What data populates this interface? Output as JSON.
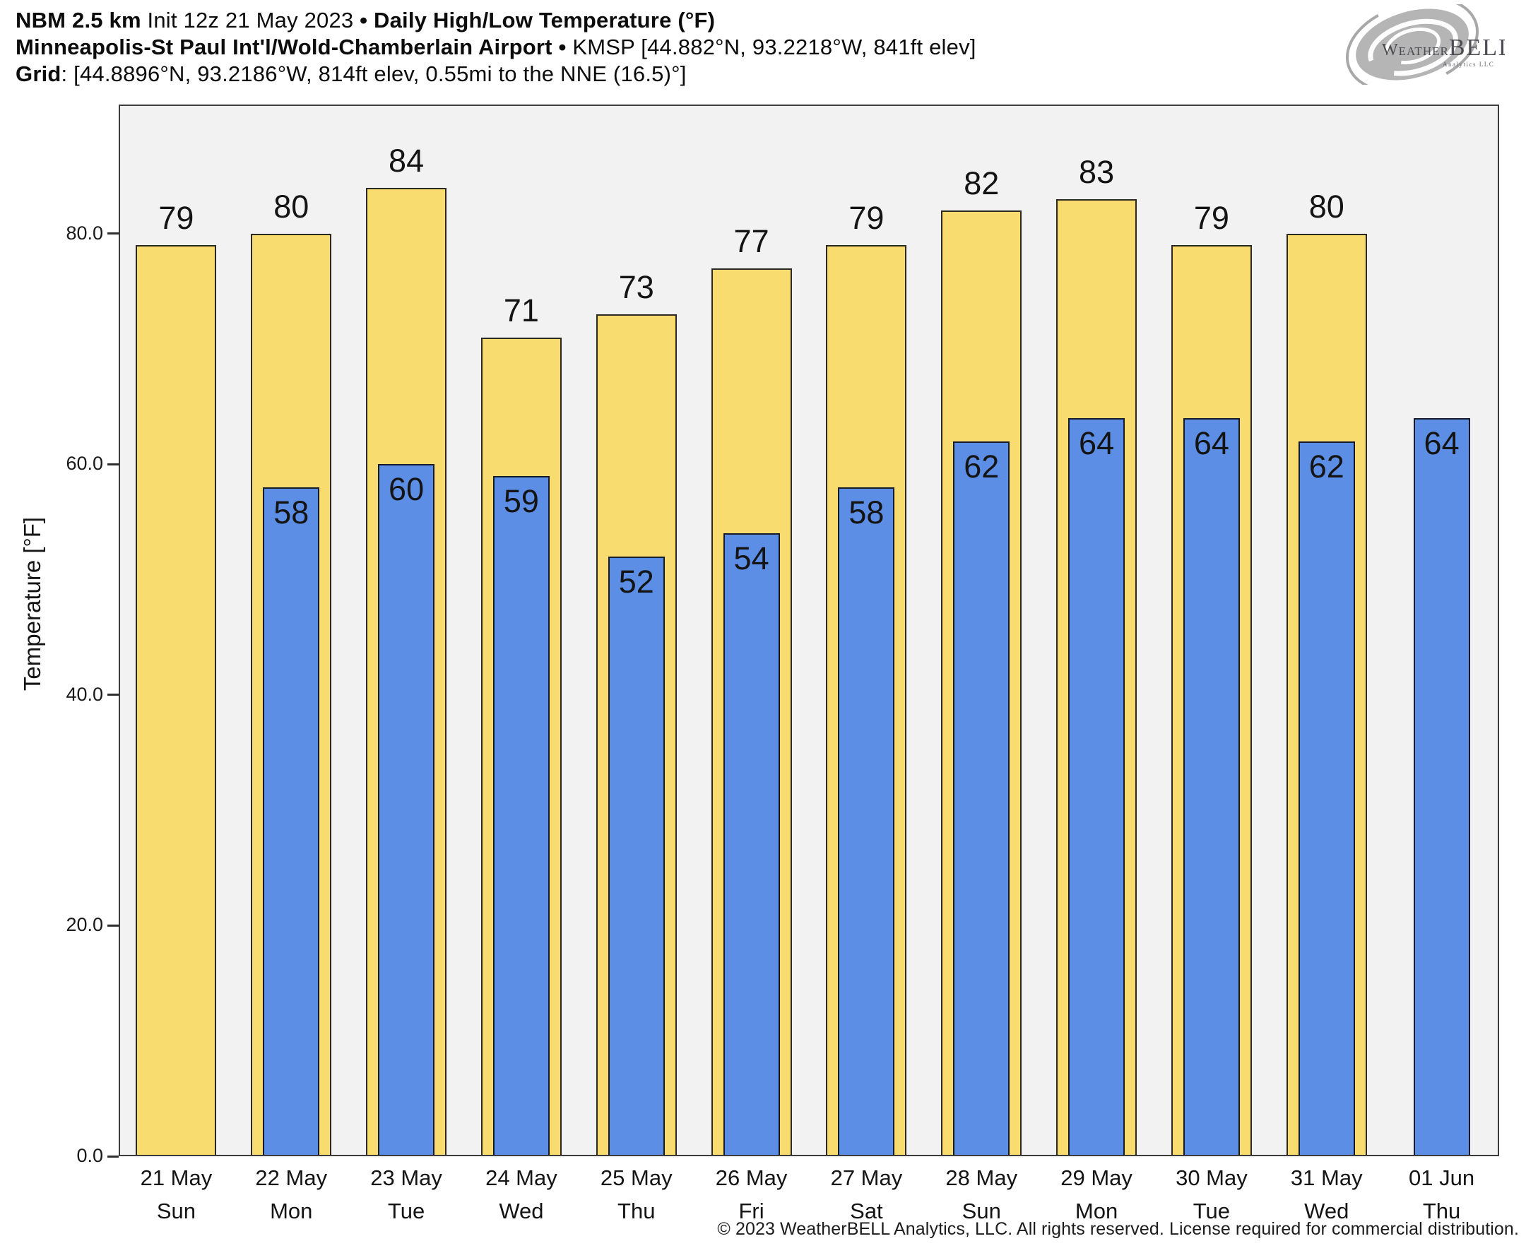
{
  "header": {
    "line1": {
      "model": "NBM 2.5 km",
      "init": " Init 12z 21 May 2023 ",
      "sep": "•",
      "title": " Daily High/Low Temperature (°F)"
    },
    "line2": {
      "station": "Minneapolis-St Paul Int'l/Wold-Chamberlain Airport",
      "sep": " • ",
      "details": "KMSP [44.882°N, 93.2218°W, 841ft elev]"
    },
    "line3": {
      "label": "Grid",
      "details": ": [44.8896°N, 93.2186°W, 814ft elev, 0.55mi to the NNE (16.5)°]"
    }
  },
  "logo": {
    "brand_weather": "Weather",
    "brand_bell": "BELL",
    "subtext": "Analytics LLC"
  },
  "chart_data": {
    "type": "bar",
    "title": "Daily High/Low Temperature (°F)",
    "ylabel": "Temperature [°F]",
    "ylim": [
      0,
      91.2
    ],
    "yticks": [
      0,
      20,
      40,
      60,
      80
    ],
    "ytick_labels": [
      "0.0",
      "20.0",
      "40.0",
      "60.0",
      "80.0"
    ],
    "grid": false,
    "legend_position": "none",
    "categories": [
      {
        "date": "21 May",
        "day": "Sun"
      },
      {
        "date": "22 May",
        "day": "Mon"
      },
      {
        "date": "23 May",
        "day": "Tue"
      },
      {
        "date": "24 May",
        "day": "Wed"
      },
      {
        "date": "25 May",
        "day": "Thu"
      },
      {
        "date": "26 May",
        "day": "Fri"
      },
      {
        "date": "27 May",
        "day": "Sat"
      },
      {
        "date": "28 May",
        "day": "Sun"
      },
      {
        "date": "29 May",
        "day": "Mon"
      },
      {
        "date": "30 May",
        "day": "Tue"
      },
      {
        "date": "31 May",
        "day": "Wed"
      },
      {
        "date": "01 Jun",
        "day": "Thu"
      }
    ],
    "series": [
      {
        "name": "Daily High",
        "color": "#f8dc6f",
        "values": [
          79,
          80,
          84,
          71,
          73,
          77,
          79,
          82,
          83,
          79,
          80,
          null
        ]
      },
      {
        "name": "Daily Low",
        "color": "#5b8ee4",
        "values": [
          null,
          58,
          60,
          59,
          52,
          54,
          58,
          62,
          64,
          64,
          62,
          64
        ]
      }
    ]
  },
  "colors": {
    "high_bar": "#f8dc6f",
    "low_bar": "#5b8ee4",
    "plot_background": "#f2f2f2",
    "axis": "#3c3c3c"
  },
  "footer": {
    "copyright": "© 2023 WeatherBELL Analytics, LLC. All rights reserved. License required for commercial distribution."
  }
}
